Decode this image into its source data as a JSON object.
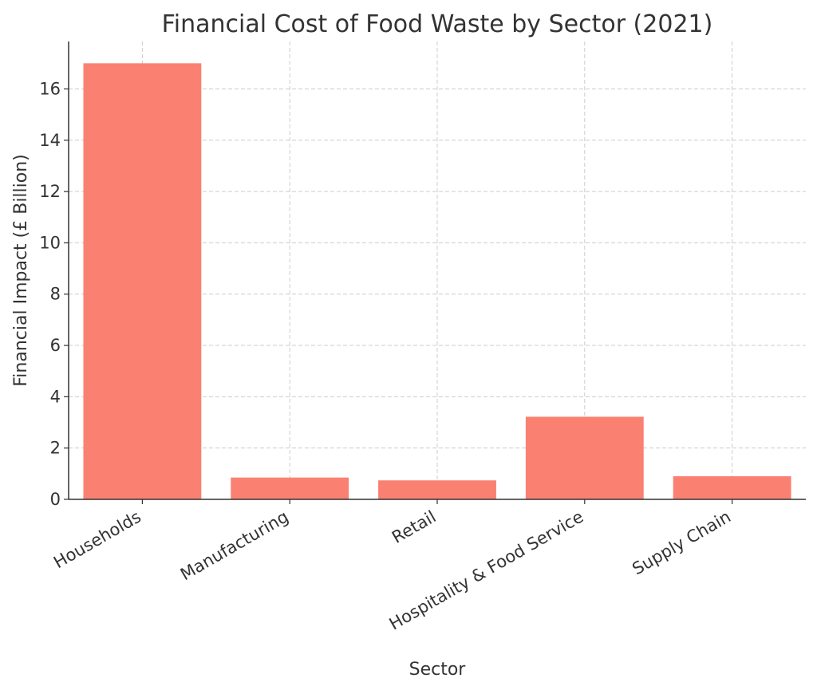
{
  "chart_data": {
    "type": "bar",
    "title": "Financial Cost of Food Waste by Sector (2021)",
    "xlabel": "Sector",
    "ylabel": "Financial Impact (£ Billion)",
    "categories": [
      "Households",
      "Manufacturing",
      "Retail",
      "Hospitality & Food Service",
      "Supply Chain"
    ],
    "values": [
      17.0,
      0.85,
      0.74,
      3.22,
      0.9
    ],
    "ylim": [
      0,
      17.85
    ],
    "yticks": [
      0,
      2,
      4,
      6,
      8,
      10,
      12,
      14,
      16
    ],
    "grid": true,
    "bar_color": "#fa8072"
  }
}
